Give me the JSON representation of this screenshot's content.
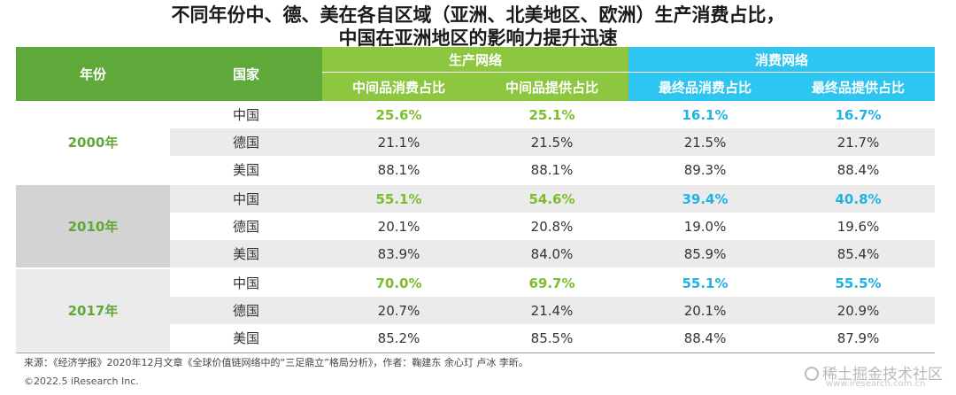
{
  "title": {
    "line1": "不同年份中、德、美在各自区域（亚洲、北美地区、欧洲）生产消费占比，",
    "line2": "中国在亚洲地区的影响力提升迅速"
  },
  "header": {
    "year": "年份",
    "country": "国家",
    "production": "生产网络",
    "consumption": "消费网络",
    "cols": [
      "中间品消费占比",
      "中间品提供占比",
      "最终品消费占比",
      "最终品提供占比"
    ]
  },
  "groups": [
    {
      "year": "2000年",
      "rows": [
        {
          "country": "中国",
          "v": [
            "25.6%",
            "25.1%",
            "16.1%",
            "16.7%"
          ]
        },
        {
          "country": "德国",
          "v": [
            "21.1%",
            "21.5%",
            "21.5%",
            "21.7%"
          ]
        },
        {
          "country": "美国",
          "v": [
            "88.1%",
            "88.1%",
            "89.3%",
            "88.4%"
          ]
        }
      ]
    },
    {
      "year": "2010年",
      "rows": [
        {
          "country": "中国",
          "v": [
            "55.1%",
            "54.6%",
            "39.4%",
            "40.8%"
          ]
        },
        {
          "country": "德国",
          "v": [
            "20.1%",
            "20.8%",
            "19.0%",
            "19.6%"
          ]
        },
        {
          "country": "美国",
          "v": [
            "83.9%",
            "84.0%",
            "85.9%",
            "85.4%"
          ]
        }
      ]
    },
    {
      "year": "2017年",
      "rows": [
        {
          "country": "中国",
          "v": [
            "70.0%",
            "69.7%",
            "55.1%",
            "55.5%"
          ]
        },
        {
          "country": "德国",
          "v": [
            "20.7%",
            "21.4%",
            "20.1%",
            "20.9%"
          ]
        },
        {
          "country": "美国",
          "v": [
            "85.2%",
            "85.5%",
            "88.4%",
            "87.9%"
          ]
        }
      ]
    }
  ],
  "footer": {
    "source": "来源：《经济学报》2020年12月文章《全球价值链网络中的“三足鼎立”格局分析》，作者：鞠建东 余心玎 卢冰 李昕。",
    "copyright": "©2022.5 iResearch Inc.",
    "watermark_main": "稀土掘金技术社区",
    "watermark_url": "www.iresearch.com.cn"
  },
  "colors": {
    "green_dark": "#5fa83a",
    "green_light": "#8dc63f",
    "cyan": "#2ec5f0",
    "green_text": "#7cbd2d",
    "blue_text": "#1fb3e3"
  }
}
